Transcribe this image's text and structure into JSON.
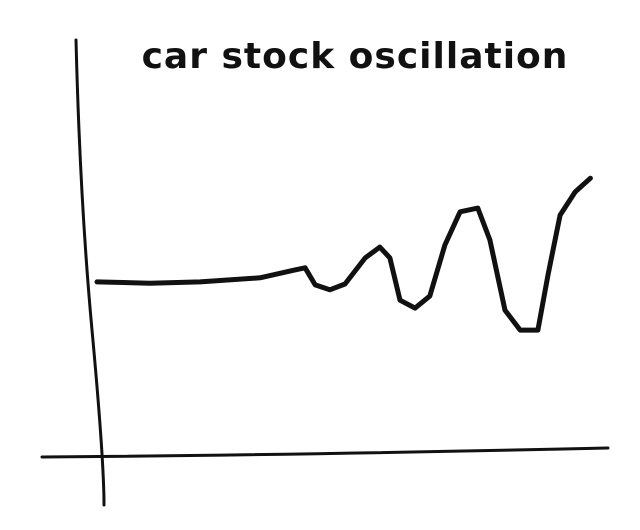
{
  "chart_data": {
    "type": "line",
    "title": "car stock oscillation",
    "x": [
      0,
      10.5,
      20.4,
      32.3,
      39.2,
      41.2,
      43.2,
      46.1,
      49.1,
      53.1,
      56.0,
      58.0,
      60.0,
      63.0,
      65.9,
      68.9,
      71.9,
      75.4,
      77.8,
      80.8,
      83.8,
      87.3,
      89.3,
      91.7,
      94.7,
      97.7
    ],
    "values": [
      41.7,
      41.4,
      41.7,
      42.7,
      44.6,
      45.1,
      41.0,
      39.8,
      41.2,
      47.5,
      50.1,
      47.5,
      37.3,
      35.4,
      38.3,
      50.6,
      58.6,
      59.5,
      51.8,
      34.9,
      30.1,
      30.1,
      43.4,
      57.8,
      63.4,
      66.7
    ],
    "color": "#111111",
    "xlim": [
      0,
      100
    ],
    "ylim": [
      0,
      100
    ]
  }
}
